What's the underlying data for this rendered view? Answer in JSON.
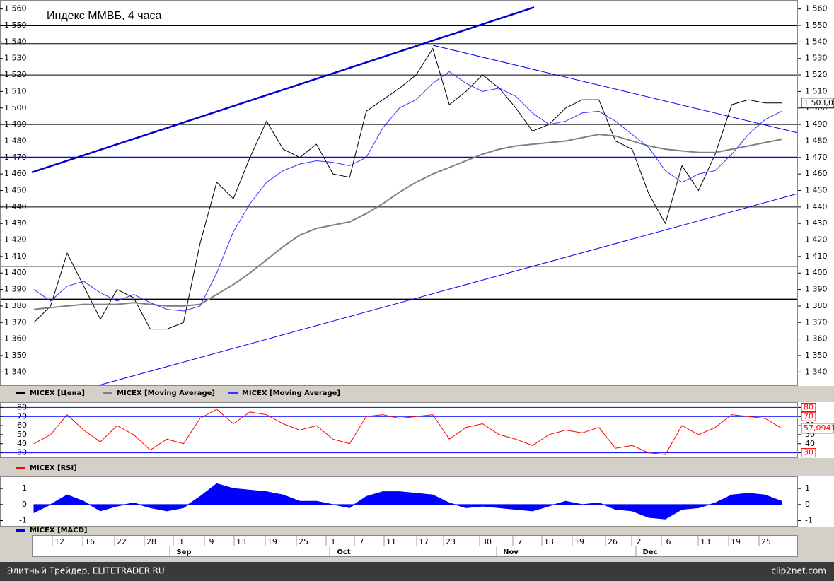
{
  "chart_data": [
    {
      "type": "line",
      "title": "Индекс ММВБ, 4 часа",
      "ylim": [
        1332,
        1565
      ],
      "yticks": [
        {
          "value": 1340,
          "label": "1 340"
        },
        {
          "value": 1350,
          "label": "1 350"
        },
        {
          "value": 1360,
          "label": "1 360"
        },
        {
          "value": 1370,
          "label": "1 370"
        },
        {
          "value": 1380,
          "label": "1 380"
        },
        {
          "value": 1390,
          "label": "1 390"
        },
        {
          "value": 1400,
          "label": "1 400"
        },
        {
          "value": 1410,
          "label": "1 410"
        },
        {
          "value": 1420,
          "label": "1 420"
        },
        {
          "value": 1430,
          "label": "1 430"
        },
        {
          "value": 1440,
          "label": "1 440"
        },
        {
          "value": 1450,
          "label": "1 450"
        },
        {
          "value": 1460,
          "label": "1 460"
        },
        {
          "value": 1470,
          "label": "1 470"
        },
        {
          "value": 1480,
          "label": "1 480"
        },
        {
          "value": 1490,
          "label": "1 490"
        },
        {
          "value": 1500,
          "label": "1 500"
        },
        {
          "value": 1510,
          "label": "1 510"
        },
        {
          "value": 1520,
          "label": "1 520"
        },
        {
          "value": 1530,
          "label": "1 530"
        },
        {
          "value": 1540,
          "label": "1 540"
        },
        {
          "value": 1550,
          "label": "1 550"
        },
        {
          "value": 1560,
          "label": "1 560"
        }
      ],
      "last_value": {
        "value": 1503,
        "label": "1 503,0"
      },
      "series": [
        {
          "name": "MICEX [Цена]",
          "color": "#000000",
          "values": [
            1370,
            1380,
            1412,
            1392,
            1372,
            1390,
            1385,
            1366,
            1366,
            1370,
            1418,
            1455,
            1445,
            1470,
            1492,
            1475,
            1470,
            1478,
            1460,
            1458,
            1498,
            1505,
            1512,
            1520,
            1536,
            1502,
            1510,
            1520,
            1512,
            1500,
            1486,
            1490,
            1500,
            1505,
            1505,
            1480,
            1475,
            1448,
            1430,
            1465,
            1450,
            1472,
            1502,
            1505,
            1503,
            1503
          ]
        },
        {
          "name": "MICEX [Moving Average]",
          "color": "#808080",
          "values": [
            1378,
            1379,
            1380,
            1381,
            1381,
            1381,
            1382,
            1381,
            1380,
            1380,
            1381,
            1387,
            1393,
            1400,
            1408,
            1416,
            1423,
            1427,
            1429,
            1431,
            1436,
            1442,
            1449,
            1455,
            1460,
            1464,
            1468,
            1472,
            1475,
            1477,
            1478,
            1479,
            1480,
            1482,
            1484,
            1483,
            1480,
            1477,
            1475,
            1474,
            1473,
            1473,
            1475,
            1477,
            1479,
            1481
          ]
        },
        {
          "name": "MICEX [Moving Average]",
          "color": "#3333ff",
          "values": [
            1390,
            1383,
            1392,
            1395,
            1388,
            1383,
            1387,
            1382,
            1378,
            1377,
            1380,
            1400,
            1425,
            1442,
            1455,
            1462,
            1466,
            1468,
            1467,
            1465,
            1470,
            1488,
            1500,
            1505,
            1515,
            1522,
            1515,
            1510,
            1512,
            1507,
            1497,
            1490,
            1492,
            1497,
            1498,
            1492,
            1484,
            1476,
            1462,
            1455,
            1460,
            1462,
            1472,
            1484,
            1493,
            1498
          ]
        }
      ],
      "levels": [
        {
          "value": 1550,
          "color": "#000000"
        },
        {
          "value": 1539,
          "color": "#000000"
        },
        {
          "value": 1520,
          "color": "#000000"
        },
        {
          "value": 1490,
          "color": "#000000"
        },
        {
          "value": 1470,
          "color": "#0000ff"
        },
        {
          "value": 1440,
          "color": "#000000"
        },
        {
          "value": 1404,
          "color": "#000000"
        },
        {
          "value": 1384,
          "color": "#000000"
        }
      ],
      "trendlines": [
        {
          "from": 1461,
          "to": 1561,
          "color": "#0000cc"
        },
        {
          "from": 1332,
          "to": 1448,
          "color": "#0000ff"
        },
        {
          "from": 1538,
          "to": 1485,
          "color": "#0000ff"
        }
      ]
    },
    {
      "type": "line",
      "ylim": [
        25,
        85
      ],
      "yticks": [
        30,
        40,
        50,
        60,
        70,
        80
      ],
      "levels": [
        30,
        70,
        80
      ],
      "last_value": {
        "value": 57.0941,
        "label": "57,0941"
      },
      "series": [
        {
          "name": "MICEX [RSI]",
          "color": "#ff0000",
          "values": [
            40,
            50,
            72,
            55,
            42,
            60,
            50,
            33,
            45,
            40,
            68,
            78,
            62,
            75,
            72,
            62,
            55,
            60,
            45,
            40,
            70,
            72,
            68,
            70,
            72,
            45,
            58,
            62,
            50,
            45,
            38,
            50,
            55,
            52,
            58,
            35,
            38,
            30,
            28,
            60,
            50,
            58,
            72,
            70,
            68,
            57
          ]
        }
      ]
    },
    {
      "type": "area",
      "ylim": [
        -1.33,
        1.71
      ],
      "yticks": [
        -1,
        0,
        1
      ],
      "series": [
        {
          "name": "MICEX [MACD]",
          "color": "#0000ff",
          "values": [
            -0.5,
            0,
            0.6,
            0.2,
            -0.4,
            -0.1,
            0.1,
            -0.2,
            -0.4,
            -0.2,
            0.5,
            1.3,
            1.0,
            0.9,
            0.8,
            0.6,
            0.2,
            0.2,
            0,
            -0.2,
            0.5,
            0.8,
            0.8,
            0.7,
            0.6,
            0.1,
            -0.2,
            -0.1,
            -0.2,
            -0.3,
            -0.4,
            -0.1,
            0.2,
            0,
            0.1,
            -0.3,
            -0.4,
            -0.8,
            -0.9,
            -0.3,
            -0.2,
            0.1,
            0.6,
            0.7,
            0.6,
            0.2
          ]
        }
      ]
    }
  ],
  "time_axis": {
    "days": [
      12,
      16,
      22,
      28,
      3,
      9,
      13,
      19,
      25,
      1,
      7,
      11,
      17,
      23,
      30,
      7,
      13,
      19,
      26,
      2,
      6,
      13,
      19,
      25
    ],
    "months": [
      "Sep",
      "Oct",
      "Nov",
      "Dec"
    ]
  },
  "footer": {
    "left": "Элитный Трейдер, ELITETRADER.RU",
    "right": "clip2net.com"
  }
}
